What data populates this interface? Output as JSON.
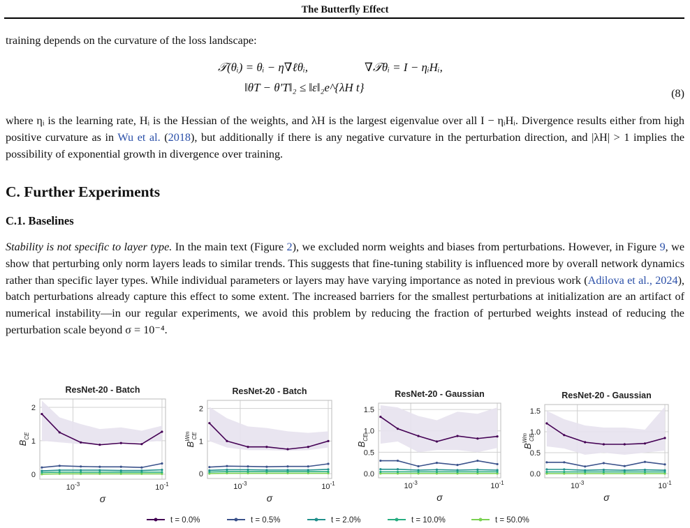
{
  "header": {
    "title": "The Butterfly Effect"
  },
  "intro_text": "training depends on the curvature of the loss landscape:",
  "equations": {
    "line1_left": "𝒯(θᵢ) = θᵢ − η∇ℓθᵢ,",
    "line1_right": "∇𝒯θᵢ = I − ηᵢHᵢ,",
    "line2": "‖θT − θ′T‖₂ ≤ ‖ε‖₂e^{λH t}",
    "number": "(8)"
  },
  "para2": {
    "before_cite": "where ηᵢ is the learning rate, Hᵢ is the Hessian of the weights, and λH is the largest eigenvalue over all I − ηᵢHᵢ. Divergence results either from high positive curvature as in ",
    "cite_name": "Wu et al.",
    "cite_year": "2018",
    "after_cite": ", but additionally if there is any negative curvature in the perturbation direction, and |λH| > 1 implies the possibility of exponential growth in divergence over training."
  },
  "section_title": "C. Further Experiments",
  "subsection_title": "C.1. Baselines",
  "para3": {
    "lead": "Stability is not specific to layer type.",
    "t1": " In the main text (Figure ",
    "fig2": "2",
    "t2": "), we excluded norm weights and biases from perturbations. However, in Figure ",
    "fig9": "9",
    "t3": ", we show that perturbing only norm layers leads to similar trends. This suggests that fine-tuning stability is influenced more by overall network dynamics rather than specific layer types. While individual parameters or layers may have varying importance as noted in previous work (",
    "cite": "Adilova et al., 2024",
    "t4": "), batch perturbations already capture this effect to some extent. The increased barriers for the smallest perturbations at initialization are an artifact of numerical instability—in our regular experiments, we avoid this problem by reducing the fraction of perturbed weights instead of reducing the perturbation scale beyond σ = 10⁻⁴."
  },
  "legend": [
    "t = 0.0%",
    "t = 0.5%",
    "t = 2.0%",
    "t = 10.0%",
    "t = 50.0%"
  ],
  "colors": {
    "series": [
      "#440154",
      "#3b528b",
      "#21908c",
      "#27ad81",
      "#7ad151"
    ],
    "band": "#e7e2ee",
    "grid": "#d0d0d0",
    "cite": "#2a4fa8"
  },
  "chart_data": [
    {
      "type": "line",
      "title": "ResNet-20 - Batch",
      "ylabel": "B_CE",
      "xlabel": "σ",
      "xscale": "log",
      "xlim": [
        0.00018,
        0.12
      ],
      "ylim": [
        -0.15,
        2.25
      ],
      "yticks": [
        0,
        1,
        2
      ],
      "xticks": [
        "10^-3",
        "10^-1"
      ],
      "grid": true,
      "x": [
        0.0002,
        0.0005,
        0.0015,
        0.004,
        0.012,
        0.035,
        0.1
      ],
      "band": {
        "upper": [
          2.2,
          1.7,
          1.5,
          1.35,
          1.4,
          1.3,
          1.45
        ],
        "lower": [
          1.0,
          0.95,
          0.9,
          0.92,
          0.95,
          0.95,
          1.0
        ]
      },
      "series": [
        {
          "name": "t = 0.0%",
          "values": [
            1.8,
            1.25,
            0.95,
            0.88,
            0.93,
            0.9,
            1.27
          ]
        },
        {
          "name": "t = 0.5%",
          "values": [
            0.2,
            0.25,
            0.23,
            0.22,
            0.22,
            0.2,
            0.32
          ]
        },
        {
          "name": "t = 2.0%",
          "values": [
            0.1,
            0.12,
            0.12,
            0.12,
            0.11,
            0.11,
            0.13
          ]
        },
        {
          "name": "t = 10.0%",
          "values": [
            0.05,
            0.06,
            0.06,
            0.06,
            0.06,
            0.06,
            0.06
          ]
        },
        {
          "name": "t = 50.0%",
          "values": [
            0.0,
            0.01,
            0.01,
            0.01,
            0.01,
            0.01,
            0.01
          ]
        }
      ]
    },
    {
      "type": "line",
      "title": "ResNet-20 - Batch",
      "ylabel": "B_CE^Wm",
      "xlabel": "σ",
      "xscale": "log",
      "xlim": [
        0.00018,
        0.12
      ],
      "ylim": [
        -0.15,
        2.25
      ],
      "yticks": [
        0,
        1,
        2
      ],
      "xticks": [
        "10^-3",
        "10^-1"
      ],
      "grid": true,
      "x": [
        0.0002,
        0.0005,
        0.0015,
        0.004,
        0.012,
        0.035,
        0.1
      ],
      "band": {
        "upper": [
          2.05,
          1.7,
          1.45,
          1.4,
          1.3,
          1.25,
          1.3
        ],
        "lower": [
          1.0,
          0.8,
          0.72,
          0.72,
          0.7,
          0.72,
          0.8
        ]
      },
      "series": [
        {
          "name": "t = 0.0%",
          "values": [
            1.55,
            1.0,
            0.82,
            0.82,
            0.75,
            0.82,
            1.0
          ]
        },
        {
          "name": "t = 0.5%",
          "values": [
            0.2,
            0.23,
            0.22,
            0.21,
            0.22,
            0.22,
            0.3
          ]
        },
        {
          "name": "t = 2.0%",
          "values": [
            0.1,
            0.12,
            0.12,
            0.11,
            0.11,
            0.11,
            0.13
          ]
        },
        {
          "name": "t = 10.0%",
          "values": [
            0.05,
            0.06,
            0.06,
            0.06,
            0.06,
            0.06,
            0.06
          ]
        },
        {
          "name": "t = 50.0%",
          "values": [
            0.0,
            0.01,
            0.01,
            0.01,
            0.01,
            0.01,
            0.01
          ]
        }
      ]
    },
    {
      "type": "line",
      "title": "ResNet-20 - Gaussian",
      "ylabel": "B_CE",
      "xlabel": "σ",
      "xscale": "log",
      "xlim": [
        0.00018,
        0.12
      ],
      "ylim": [
        -0.1,
        1.65
      ],
      "yticks": [
        0.0,
        0.5,
        1.0,
        1.5
      ],
      "xticks": [
        "10^-3",
        "10^-1"
      ],
      "grid": true,
      "x": [
        0.0002,
        0.0005,
        0.0015,
        0.004,
        0.012,
        0.035,
        0.1
      ],
      "band": {
        "upper": [
          1.6,
          1.55,
          1.35,
          1.25,
          1.45,
          1.4,
          1.55
        ],
        "lower": [
          0.7,
          0.75,
          0.5,
          0.55,
          0.55,
          0.5,
          0.6
        ]
      },
      "series": [
        {
          "name": "t = 0.0%",
          "values": [
            1.33,
            1.05,
            0.88,
            0.75,
            0.88,
            0.82,
            0.87
          ]
        },
        {
          "name": "t = 0.5%",
          "values": [
            0.3,
            0.3,
            0.17,
            0.25,
            0.2,
            0.3,
            0.22
          ]
        },
        {
          "name": "t = 2.0%",
          "values": [
            0.1,
            0.1,
            0.08,
            0.09,
            0.08,
            0.09,
            0.08
          ]
        },
        {
          "name": "t = 10.0%",
          "values": [
            0.04,
            0.04,
            0.04,
            0.04,
            0.04,
            0.04,
            0.04
          ]
        },
        {
          "name": "t = 50.0%",
          "values": [
            0.0,
            0.0,
            0.0,
            0.0,
            0.0,
            0.0,
            0.0
          ]
        }
      ]
    },
    {
      "type": "line",
      "title": "ResNet-20 - Gaussian",
      "ylabel": "B_CE^Wm",
      "xlabel": "σ",
      "xscale": "log",
      "xlim": [
        0.00018,
        0.12
      ],
      "ylim": [
        -0.1,
        1.65
      ],
      "yticks": [
        0.0,
        0.5,
        1.0,
        1.5
      ],
      "xticks": [
        "10^-3",
        "10^-1"
      ],
      "grid": true,
      "x": [
        0.0002,
        0.0005,
        0.0015,
        0.004,
        0.012,
        0.035,
        0.1
      ],
      "band": {
        "upper": [
          1.5,
          1.3,
          1.15,
          1.1,
          1.1,
          1.05,
          1.6
        ],
        "lower": [
          0.65,
          0.6,
          0.45,
          0.5,
          0.45,
          0.5,
          0.55
        ]
      },
      "series": [
        {
          "name": "t = 0.0%",
          "values": [
            1.2,
            0.92,
            0.75,
            0.7,
            0.7,
            0.72,
            0.85
          ]
        },
        {
          "name": "t = 0.5%",
          "values": [
            0.27,
            0.27,
            0.17,
            0.25,
            0.18,
            0.28,
            0.22
          ]
        },
        {
          "name": "t = 2.0%",
          "values": [
            0.1,
            0.1,
            0.08,
            0.09,
            0.08,
            0.09,
            0.08
          ]
        },
        {
          "name": "t = 10.0%",
          "values": [
            0.04,
            0.04,
            0.04,
            0.04,
            0.04,
            0.04,
            0.04
          ]
        },
        {
          "name": "t = 50.0%",
          "values": [
            0.0,
            0.0,
            0.0,
            0.0,
            0.0,
            0.0,
            0.0
          ]
        }
      ]
    }
  ]
}
